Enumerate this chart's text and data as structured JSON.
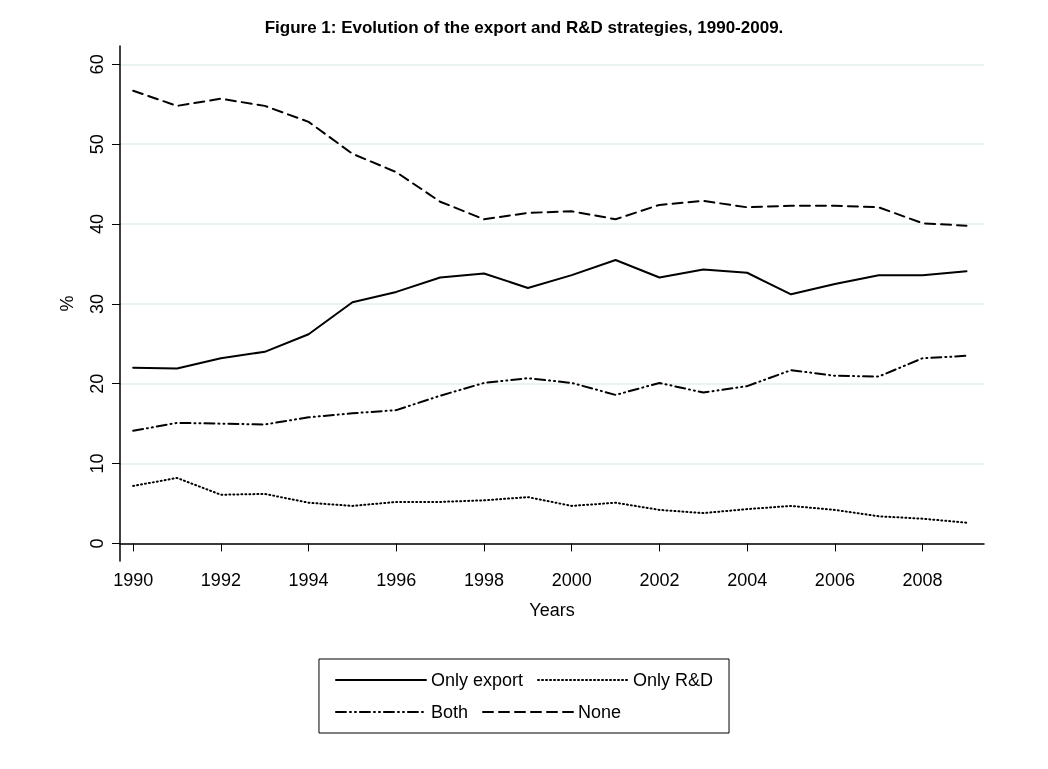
{
  "chart_data": {
    "type": "line",
    "title": "Figure 1: Evolution of the export and R&D strategies, 1990-2009.",
    "xlabel": "Years",
    "ylabel": "%",
    "x": [
      1990,
      1991,
      1992,
      1993,
      1994,
      1995,
      1996,
      1997,
      1998,
      1999,
      2000,
      2001,
      2002,
      2003,
      2004,
      2005,
      2006,
      2007,
      2008,
      2009
    ],
    "series": [
      {
        "name": "Only export",
        "color": "#000000",
        "line_style": "solid",
        "values": [
          22.0,
          21.9,
          23.2,
          24.0,
          26.2,
          30.2,
          31.5,
          33.3,
          33.8,
          32.0,
          33.6,
          35.5,
          33.3,
          34.3,
          33.9,
          31.2,
          32.5,
          33.6,
          33.6,
          34.1
        ]
      },
      {
        "name": "Only R&D",
        "color": "#000000",
        "line_style": "dotted",
        "values": [
          7.2,
          8.2,
          6.1,
          6.2,
          5.1,
          4.7,
          5.2,
          5.2,
          5.4,
          5.8,
          4.7,
          5.1,
          4.2,
          3.8,
          4.3,
          4.7,
          4.2,
          3.4,
          3.1,
          2.6
        ]
      },
      {
        "name": "Both",
        "color": "#000000",
        "line_style": "dashdot",
        "values": [
          14.1,
          15.1,
          15.0,
          14.9,
          15.8,
          16.3,
          16.7,
          18.5,
          20.1,
          20.7,
          20.1,
          18.6,
          20.1,
          18.9,
          19.7,
          21.7,
          21.0,
          20.9,
          23.2,
          23.5
        ]
      },
      {
        "name": "None",
        "color": "#000000",
        "line_style": "dashed",
        "values": [
          56.7,
          54.8,
          55.7,
          54.8,
          52.8,
          48.8,
          46.5,
          42.8,
          40.6,
          41.4,
          41.6,
          40.6,
          42.4,
          42.9,
          42.1,
          42.3,
          42.3,
          42.1,
          40.1,
          39.8
        ]
      }
    ],
    "xlim": [
      1989.7,
      2009.4
    ],
    "xticks": [
      1990,
      1992,
      1994,
      1996,
      1998,
      2000,
      2002,
      2004,
      2006,
      2008
    ],
    "ylim": [
      -2.2,
      62.3
    ],
    "yticks": [
      0,
      10,
      20,
      30,
      40,
      50,
      60
    ],
    "grid": "y",
    "legend": "bottom",
    "marker": "none"
  }
}
